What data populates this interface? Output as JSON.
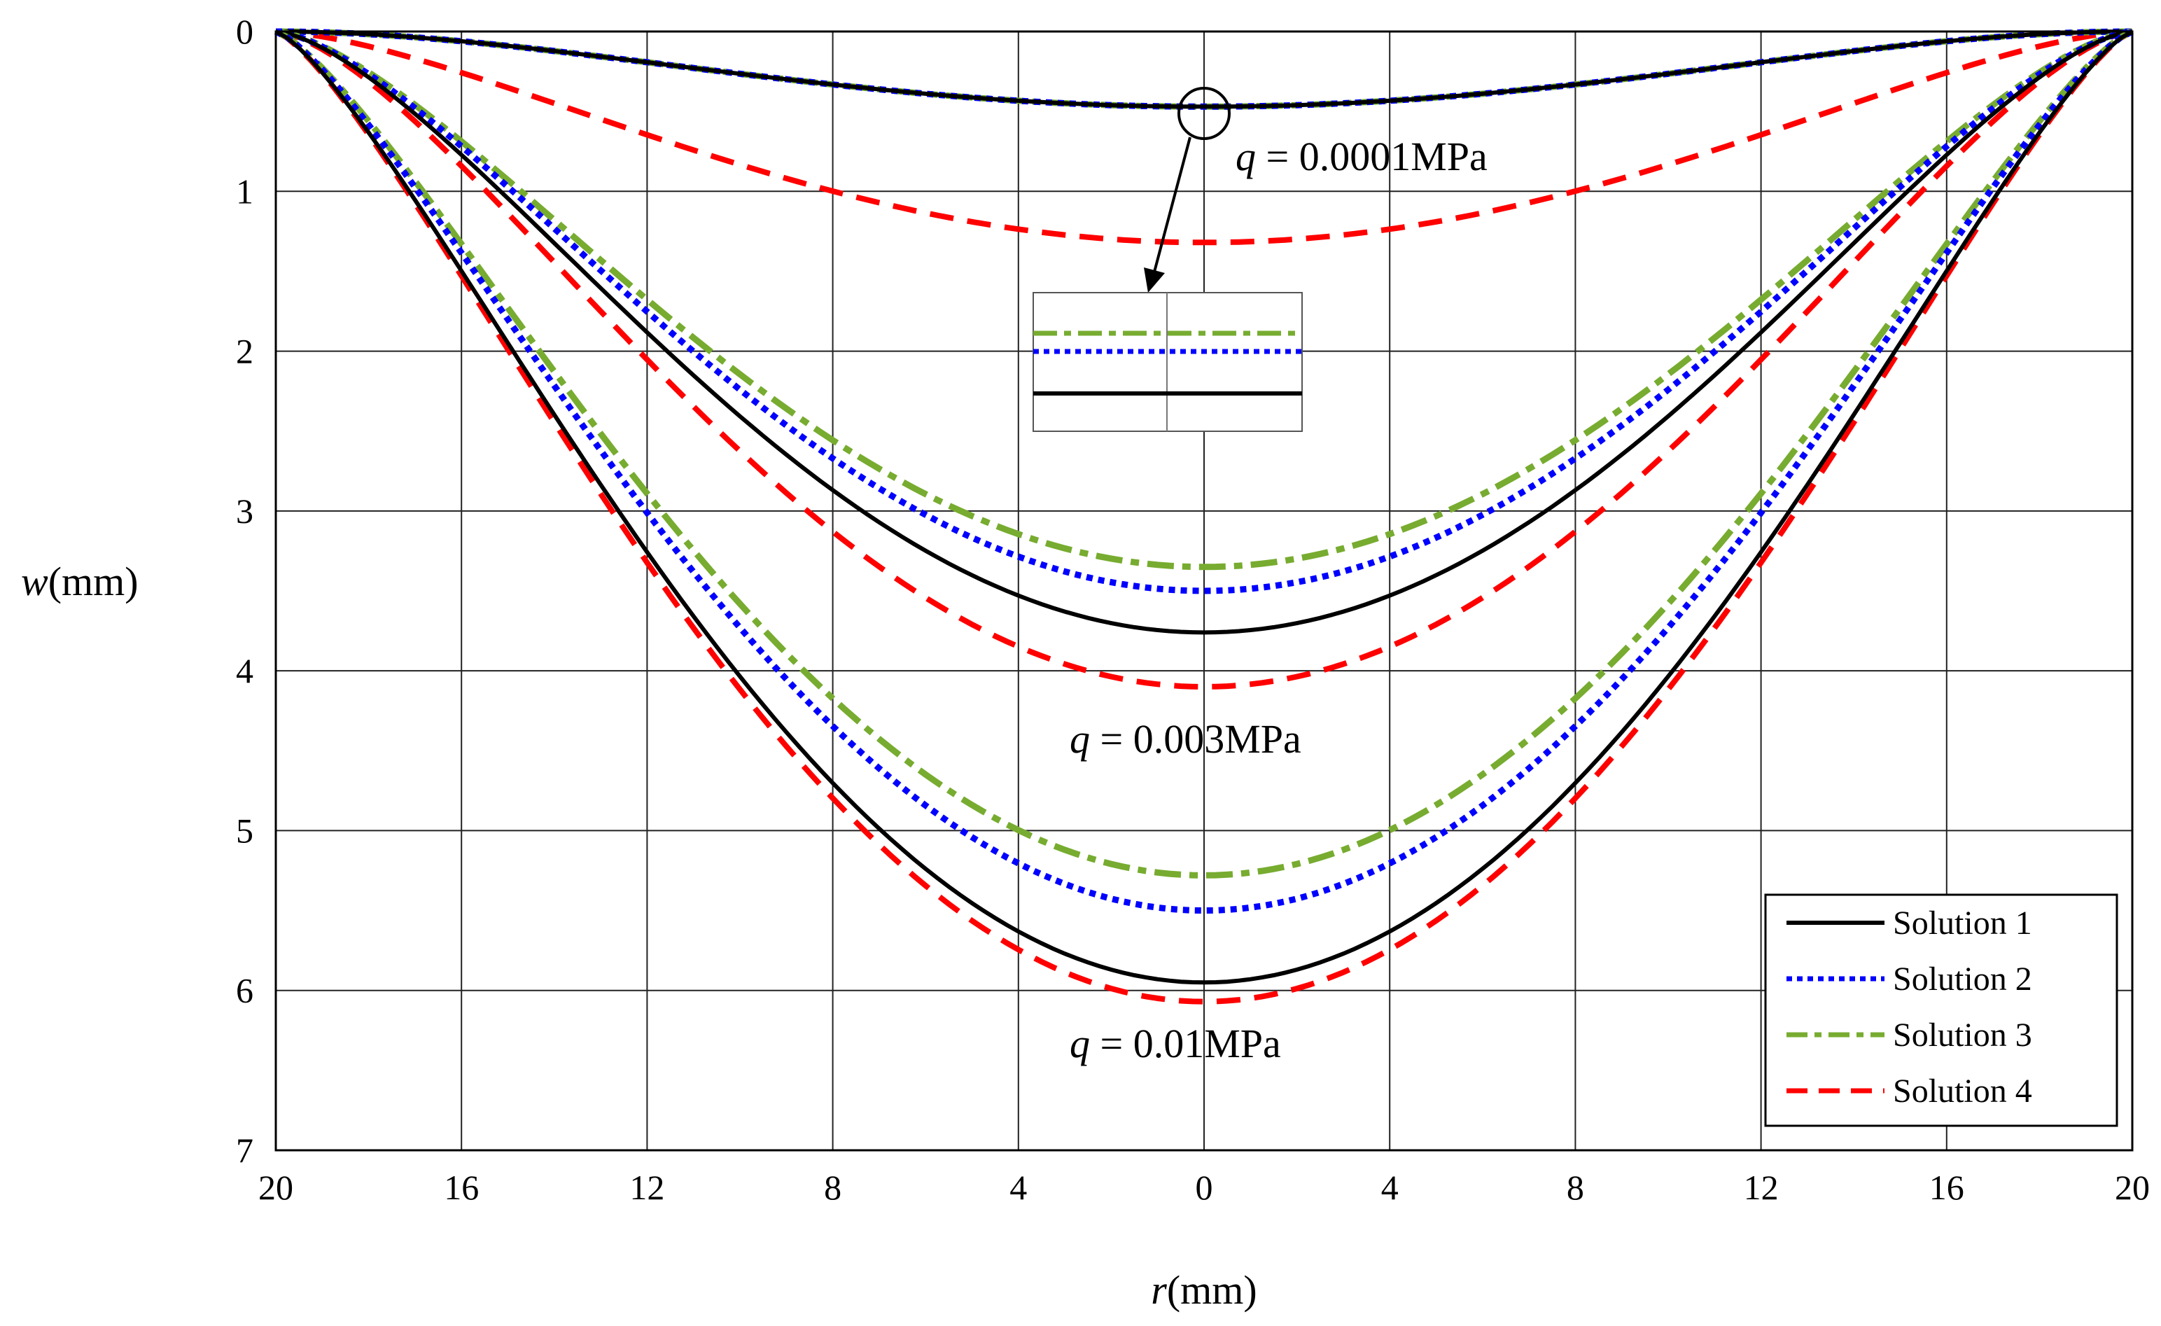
{
  "chart_data": {
    "type": "line",
    "xlabel_var": "r",
    "xlabel_unit": "(mm)",
    "ylabel_var": "w",
    "ylabel_unit": "(mm)",
    "x_ticks": [
      -20,
      -16,
      -12,
      -8,
      -4,
      0,
      4,
      8,
      12,
      16,
      20
    ],
    "x_tick_labels": [
      "20",
      "16",
      "12",
      "8",
      "4",
      "0",
      "4",
      "8",
      "12",
      "16",
      "20"
    ],
    "y_ticks": [
      0,
      1,
      2,
      3,
      4,
      5,
      6,
      7
    ],
    "y_tick_labels": [
      "0",
      "1",
      "2",
      "3",
      "4",
      "5",
      "6",
      "7"
    ],
    "xlim": [
      -20,
      20
    ],
    "ylim": [
      0,
      7
    ],
    "y_inverted": true,
    "grid": true,
    "legend_position": "bottom-right",
    "legend": [
      "Solution 1",
      "Solution 2",
      "Solution 3",
      "Solution 4"
    ],
    "series_colors": {
      "Solution 1": "#000000",
      "Solution 2": "#0000ff",
      "Solution 3": "#77ac30",
      "Solution 4": "#ff0000"
    },
    "load_cases": [
      {
        "q_symbol": "q",
        "q_value": " = 0.0001MPa",
        "max_deflection": {
          "Solution 1": 0.47,
          "Solution 2": 0.47,
          "Solution 3": 0.47,
          "Solution 4": 1.32
        }
      },
      {
        "q_symbol": "q",
        "q_value": " = 0.003MPa",
        "max_deflection": {
          "Solution 1": 3.76,
          "Solution 2": 3.5,
          "Solution 3": 3.35,
          "Solution 4": 4.1
        }
      },
      {
        "q_symbol": "q",
        "q_value": " = 0.01MPa",
        "max_deflection": {
          "Solution 1": 5.95,
          "Solution 2": 5.5,
          "Solution 3": 5.28,
          "Solution 4": 6.07
        }
      }
    ],
    "inset": "zoom-in of the q = 0.0001MPa curves near r = 0"
  }
}
